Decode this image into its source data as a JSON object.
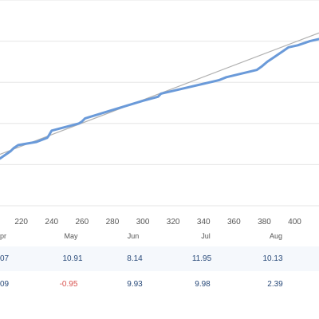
{
  "chart_data": {
    "type": "line",
    "xlabel": "",
    "ylabel": "",
    "x_ticks": [
      220,
      240,
      260,
      280,
      300,
      320,
      340,
      360,
      380,
      400
    ],
    "xlim": [
      206,
      416
    ],
    "ylim": [
      0,
      100
    ],
    "grid": true,
    "series": [
      {
        "color": "#6a9ad9",
        "x": [
          206,
          210,
          213,
          215,
          218,
          230,
          237,
          238,
          240,
          258,
          260,
          262,
          300,
          310,
          312,
          350,
          355,
          375,
          378,
          382,
          386,
          392,
          396,
          402,
          406,
          410,
          416
        ],
        "y": [
          23,
          25,
          26.5,
          28,
          29.5,
          31,
          33,
          34,
          36.5,
          40,
          41,
          42.5,
          51,
          53,
          54.5,
          61,
          62.5,
          66,
          67.5,
          70,
          72,
          75,
          77,
          78,
          79,
          80,
          81
        ]
      },
      {
        "color": "#b0b0b0",
        "x": [
          206,
          416
        ],
        "y": [
          25,
          84
        ]
      }
    ]
  },
  "table": {
    "months": [
      "pr",
      "May",
      "Jun",
      "Jul",
      "Aug"
    ],
    "rows": [
      [
        "07",
        "10.91",
        "8.14",
        "11.95",
        "10.13"
      ],
      [
        "09",
        "-0.95",
        "9.93",
        "9.98",
        "2.39"
      ]
    ]
  }
}
